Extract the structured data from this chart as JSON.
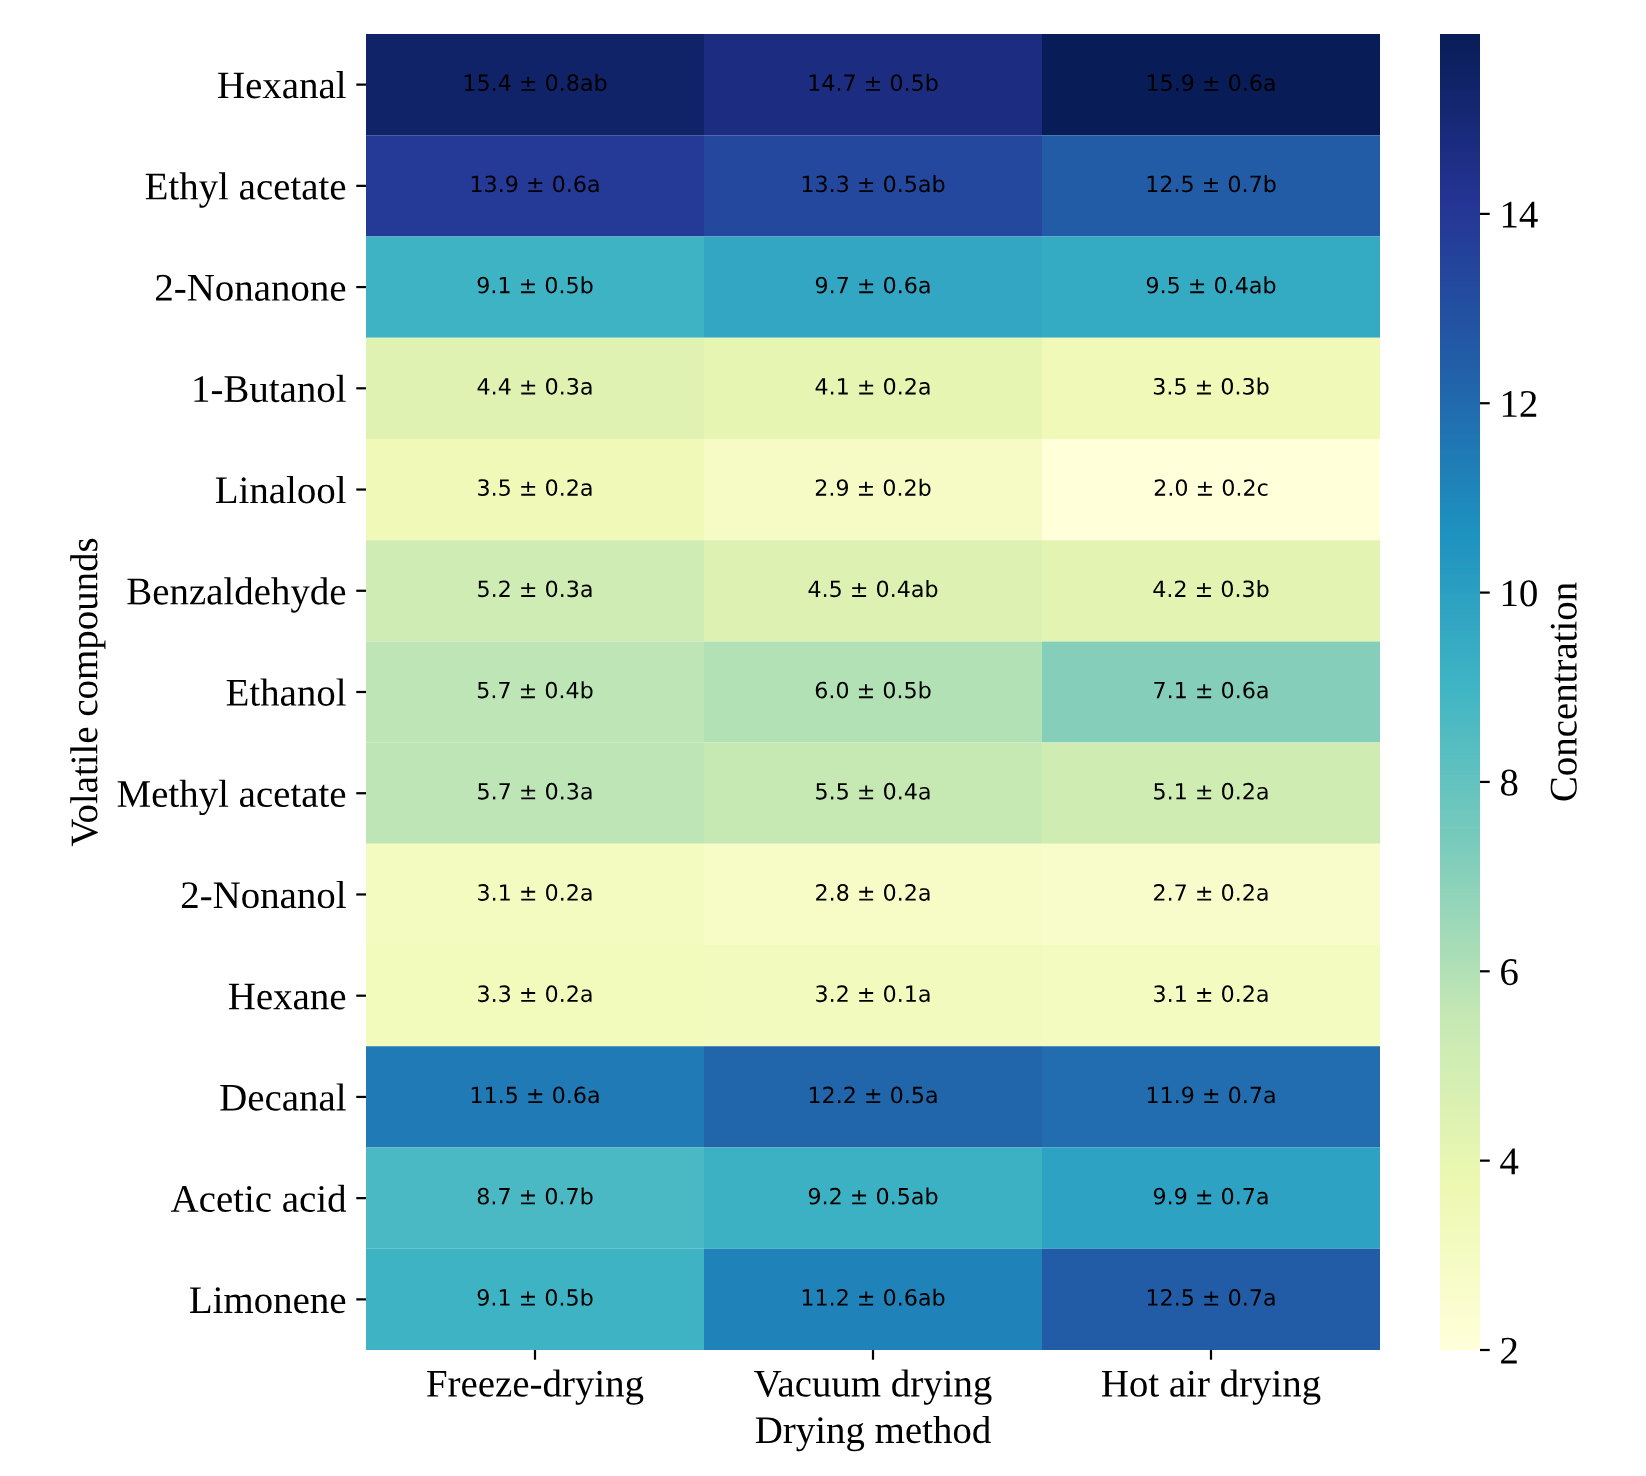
{
  "chart_data": {
    "type": "heatmap",
    "xlabel": "Drying method",
    "ylabel": "Volatile compounds",
    "clabel": "Concentration",
    "categories": [
      "Freeze-drying",
      "Vacuum drying",
      "Hot air drying"
    ],
    "y_categories": [
      "Hexanal",
      "Ethyl acetate",
      "2-Nonanone",
      "1-Butanol",
      "Linalool",
      "Benzaldehyde",
      "Ethanol",
      "Methyl acetate",
      "2-Nonanol",
      "Hexane",
      "Decanal",
      "Acetic acid",
      "Limonene"
    ],
    "cells": [
      [
        15.4,
        14.7,
        15.9
      ],
      [
        13.9,
        13.3,
        12.5
      ],
      [
        9.1,
        9.7,
        9.5
      ],
      [
        4.4,
        4.1,
        3.5
      ],
      [
        3.5,
        2.9,
        2.0
      ],
      [
        5.2,
        4.5,
        4.2
      ],
      [
        5.7,
        6.0,
        7.1
      ],
      [
        5.7,
        5.5,
        5.1
      ],
      [
        3.1,
        2.8,
        2.7
      ],
      [
        3.3,
        3.2,
        3.1
      ],
      [
        11.5,
        12.2,
        11.9
      ],
      [
        8.7,
        9.2,
        9.9
      ],
      [
        9.1,
        11.2,
        12.5
      ]
    ],
    "cell_labels": [
      [
        "15.4 ± 0.8ab",
        "14.7 ± 0.5b",
        "15.9 ± 0.6a"
      ],
      [
        "13.9 ± 0.6a",
        "13.3 ± 0.5ab",
        "12.5 ± 0.7b"
      ],
      [
        "9.1 ± 0.5b",
        "9.7 ± 0.6a",
        "9.5 ± 0.4ab"
      ],
      [
        "4.4 ± 0.3a",
        "4.1 ± 0.2a",
        "3.5 ± 0.3b"
      ],
      [
        "3.5 ± 0.2a",
        "2.9 ± 0.2b",
        "2.0 ± 0.2c"
      ],
      [
        "5.2 ± 0.3a",
        "4.5 ± 0.4ab",
        "4.2 ± 0.3b"
      ],
      [
        "5.7 ± 0.4b",
        "6.0 ± 0.5b",
        "7.1 ± 0.6a"
      ],
      [
        "5.7 ± 0.3a",
        "5.5 ± 0.4a",
        "5.1 ± 0.2a"
      ],
      [
        "3.1 ± 0.2a",
        "2.8 ± 0.2a",
        "2.7 ± 0.2a"
      ],
      [
        "3.3 ± 0.2a",
        "3.2 ± 0.1a",
        "3.1 ± 0.2a"
      ],
      [
        "11.5 ± 0.6a",
        "12.2 ± 0.5a",
        "11.9 ± 0.7a"
      ],
      [
        "8.7 ± 0.7b",
        "9.2 ± 0.5ab",
        "9.9 ± 0.7a"
      ],
      [
        "9.1 ± 0.5b",
        "11.2 ± 0.6ab",
        "12.5 ± 0.7a"
      ]
    ],
    "clim": [
      2,
      15.9
    ],
    "cticks": [
      2,
      4,
      6,
      8,
      10,
      12,
      14
    ]
  }
}
